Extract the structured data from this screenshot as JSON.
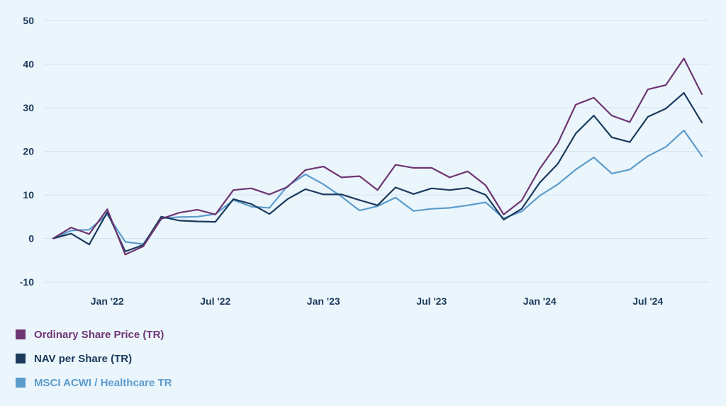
{
  "chart_data": {
    "type": "line",
    "ylim": [
      -10,
      50
    ],
    "yticks": [
      50,
      40,
      30,
      20,
      10,
      0,
      -10
    ],
    "x_tick_labels": [
      "Jan '22",
      "Jul '22",
      "Jan '23",
      "Jul '23",
      "Jan '24",
      "Jul '24"
    ],
    "x_tick_indices": [
      3,
      9,
      15,
      21,
      27,
      33
    ],
    "grid": true,
    "legend_position": "bottom-left",
    "series": [
      {
        "name": "Ordinary Share Price (TR)",
        "color": "#6e3572",
        "values": [
          0,
          2.5,
          1,
          6.7,
          -3.7,
          -1.8,
          4.5,
          5.9,
          6.6,
          5.5,
          11.1,
          11.5,
          10.1,
          11.8,
          15.7,
          16.5,
          14,
          14.3,
          11.1,
          16.9,
          16.2,
          16.2,
          14,
          15.4,
          12.2,
          5.5,
          8.7,
          16,
          21.8,
          30.7,
          32.3,
          28.2,
          26.7,
          34.2,
          35.2,
          41.3,
          33.1
        ]
      },
      {
        "name": "NAV per Share (TR)",
        "color": "#1b3a5c",
        "values": [
          0,
          1.1,
          -1.4,
          6,
          -3,
          -1.5,
          5,
          4.1,
          3.9,
          3.8,
          9,
          7.9,
          5.6,
          9,
          11.3,
          10.1,
          10.1,
          8.8,
          7.6,
          11.7,
          10.2,
          11.5,
          11.1,
          11.6,
          10,
          4.3,
          6.8,
          12.8,
          17.1,
          24.1,
          28.2,
          23.2,
          22.1,
          27.9,
          29.8,
          33.4,
          26.6
        ]
      },
      {
        "name": "MSCI ACWI / Healthcare TR",
        "color": "#5b9ccc",
        "values": [
          0,
          1.8,
          2,
          5.5,
          -0.8,
          -1.3,
          4.6,
          4.9,
          5,
          5.6,
          8.8,
          7.3,
          7,
          12,
          14.7,
          12.4,
          9.6,
          6.4,
          7.4,
          9.4,
          6.3,
          6.8,
          7,
          7.6,
          8.3,
          4.6,
          6.2,
          9.8,
          12.4,
          15.8,
          18.6,
          14.9,
          15.8,
          18.9,
          21,
          24.8,
          18.9
        ]
      }
    ]
  }
}
